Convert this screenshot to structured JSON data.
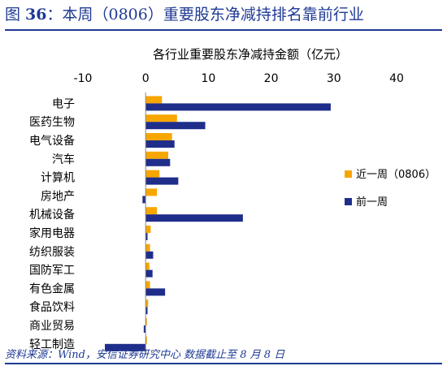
{
  "header": {
    "prefix": "图 ",
    "number": "36",
    "text": "：本周（0806）重要股东净减持排名靠前行业"
  },
  "source": {
    "text": "资料来源：Wind，安信证券研究中心    数据截止至 8 月 8 日"
  },
  "chart_data": {
    "type": "bar",
    "orientation": "horizontal",
    "title": "各行业重要股东净减持金额（亿元）",
    "xlabel": "",
    "ylabel": "",
    "xlim": [
      -10,
      40
    ],
    "xticks": [
      -10,
      0,
      10,
      20,
      30,
      40
    ],
    "grid": false,
    "legend_position": "right",
    "categories": [
      "电子",
      "医药生物",
      "电气设备",
      "汽车",
      "计算机",
      "房地产",
      "机械设备",
      "家用电器",
      "纺织服装",
      "国防军工",
      "有色金属",
      "食品饮料",
      "商业贸易",
      "轻工制造"
    ],
    "series": [
      {
        "name": "近一周（0806）",
        "color": "#f7a600",
        "values": [
          2.6,
          5.0,
          4.2,
          3.6,
          2.2,
          1.8,
          1.8,
          0.8,
          0.7,
          0.6,
          0.7,
          0.4,
          0.2,
          0.2
        ]
      },
      {
        "name": "前一周",
        "color": "#1f2e8a",
        "values": [
          29.5,
          9.5,
          4.6,
          3.9,
          5.2,
          -0.5,
          15.5,
          0.3,
          1.2,
          1.1,
          3.1,
          0.3,
          -0.3,
          -6.5
        ]
      }
    ]
  }
}
